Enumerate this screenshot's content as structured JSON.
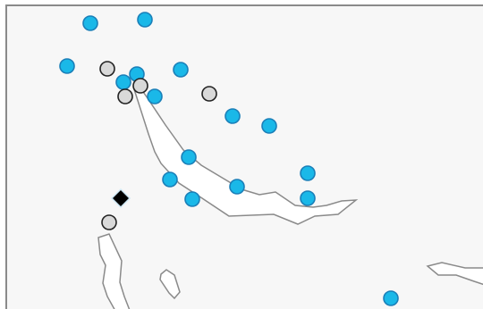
{
  "map": {
    "background_color": "#f7f7f7",
    "frame_color": "#8a8a8a",
    "land_fill": "#ffffff",
    "coast_stroke": "#8a8a8a"
  },
  "legend_styles": {
    "blue_marker": {
      "fill": "#1ab8e8",
      "stroke": "#1a7fb8",
      "shape": "circle"
    },
    "gray_marker": {
      "fill": "#d9d9d9",
      "stroke": "#222222",
      "shape": "circle"
    },
    "black_marker": {
      "fill": "#000000",
      "stroke": "#cfe8f5",
      "shape": "diamond"
    }
  }
}
